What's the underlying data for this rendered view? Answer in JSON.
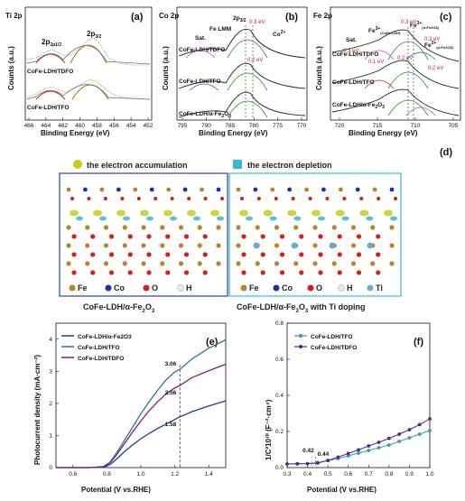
{
  "panel_a": {
    "tag": "(a)",
    "element": "Ti 2p",
    "ylabel": "Counts (a.u.)",
    "xlabel": "Binding Energy (eV)",
    "xticks": [
      "466",
      "464",
      "462",
      "460",
      "458",
      "456",
      "454",
      "452"
    ],
    "peaks": [
      "2p1/2",
      "2p3/2"
    ],
    "samples": [
      "CoFe-LDH/TDFO",
      "CoFe-LDH/TFO"
    ]
  },
  "panel_b": {
    "tag": "(b)",
    "element": "Co 2p",
    "ylabel": "Counts (a.u.)",
    "xlabel": "Binding Energy (eV)",
    "xticks": [
      "795",
      "790",
      "785",
      "780",
      "775",
      "770"
    ],
    "labels": [
      "2p3/2",
      "Fe LMM",
      "Sat.",
      "Co2+"
    ],
    "shifts": [
      "0.3 eV",
      "0.2 eV"
    ],
    "samples": [
      "CoFe-LDH/TDFO",
      "CoFe-LDH/TFO",
      "CoFe-LDH/α-Fe2O3"
    ]
  },
  "panel_c": {
    "tag": "(c)",
    "element": "Fe 2p",
    "ylabel": "Counts (a.u.)",
    "xlabel": "Binding Energy (eV)",
    "xticks": [
      "720",
      "715",
      "710",
      "705"
    ],
    "labels": [
      "Sat.",
      "Fe3+",
      "Fe2+",
      "Fe3+",
      "Fe2+"
    ],
    "subs": [
      "(CoFe-LDH)",
      "(α-Fe2O3)",
      "(α-Fe2O3)"
    ],
    "shifts": [
      "0.3 eV",
      "0.3 eV",
      "0.3 eV",
      "0.1 eV",
      "0.2 eV",
      "0.2 eV"
    ],
    "samples": [
      "CoFe-LDH/TDFO",
      "CoFe-LDH/TFO",
      "CoFe-LDH/α-Fe2O3"
    ]
  },
  "panel_d": {
    "tag": "(d)",
    "legend": [
      "the electron accumulation",
      "the electron depletion"
    ],
    "colors": {
      "accumulation": "#c8cc18",
      "depletion": "#38b8d8",
      "Fe": "#b8862a",
      "Co": "#2030a0",
      "O": "#d02020",
      "H": "#e8e8e8",
      "Ti": "#6aaad8"
    },
    "left_atoms": [
      "Fe",
      "Co",
      "O",
      "H"
    ],
    "right_atoms": [
      "Fe",
      "Co",
      "O",
      "H",
      "Ti"
    ],
    "captions": [
      "CoFe-LDH/α-Fe2O3",
      "CoFe-LDH/α-Fe2O3 with Ti doping"
    ]
  },
  "chart_data": [
    {
      "type": "line",
      "tag": "(e)",
      "xlabel": "Potential (V vs.RHE)",
      "ylabel": "Photocurrent density (mA·cm⁻²)",
      "xlim": [
        0.5,
        1.5
      ],
      "ylim": [
        0,
        4.5
      ],
      "xticks": [
        "0.6",
        "0.8",
        "1.0",
        "1.2",
        "1.4"
      ],
      "yticks": [
        "0",
        "1",
        "2",
        "3",
        "4"
      ],
      "legend_position": "top-left",
      "marker_x": 1.23,
      "series": [
        {
          "name": "CoFe-LDH/α-Fe2O3",
          "color": "#1f3a93",
          "x": [
            0.5,
            0.6,
            0.7,
            0.78,
            0.82,
            0.86,
            0.9,
            0.95,
            1.0,
            1.05,
            1.1,
            1.15,
            1.2,
            1.23,
            1.3,
            1.4,
            1.5
          ],
          "y": [
            0,
            0,
            0,
            0.02,
            0.1,
            0.28,
            0.48,
            0.7,
            0.9,
            1.07,
            1.22,
            1.36,
            1.5,
            1.58,
            1.74,
            1.92,
            2.08
          ]
        },
        {
          "name": "CoFe-LDH/TFO",
          "color": "#2a7a8a",
          "x": [
            0.5,
            0.6,
            0.7,
            0.78,
            0.82,
            0.86,
            0.9,
            0.95,
            1.0,
            1.05,
            1.1,
            1.15,
            1.2,
            1.23,
            1.3,
            1.4,
            1.5
          ],
          "y": [
            0,
            0,
            0,
            0.03,
            0.18,
            0.48,
            0.82,
            1.25,
            1.68,
            2.06,
            2.42,
            2.74,
            2.98,
            3.06,
            3.38,
            3.72,
            3.98
          ]
        },
        {
          "name": "CoFe-LDH/TDFO",
          "color": "#7a1e8a",
          "x": [
            0.5,
            0.6,
            0.7,
            0.78,
            0.82,
            0.86,
            0.9,
            0.95,
            1.0,
            1.05,
            1.1,
            1.15,
            1.2,
            1.23,
            1.3,
            1.4,
            1.5
          ],
          "y": [
            0,
            0,
            0,
            0.03,
            0.16,
            0.42,
            0.72,
            1.1,
            1.45,
            1.78,
            2.06,
            2.3,
            2.48,
            2.56,
            2.8,
            3.02,
            3.22
          ]
        }
      ],
      "annotations": [
        "3.06",
        "2.56",
        "1.58"
      ]
    },
    {
      "type": "scatter",
      "tag": "(f)",
      "xlabel": "Potential (V vs.RHE)",
      "ylabel": "1/C²10¹⁰ (F⁻²·cm⁴)",
      "xlim": [
        0.3,
        1.0
      ],
      "ylim": [
        0,
        0.8
      ],
      "xticks": [
        "0.3",
        "0.4",
        "0.5",
        "0.6",
        "0.7",
        "0.8",
        "0.9",
        "1.0"
      ],
      "yticks": [
        "0.0",
        "0.2",
        "0.4",
        "0.6",
        "0.8"
      ],
      "legend_position": "top-left",
      "series": [
        {
          "name": "CoFe-LDH/TFO",
          "color": "#3a9aa8",
          "x": [
            0.3,
            0.35,
            0.4,
            0.45,
            0.5,
            0.55,
            0.6,
            0.65,
            0.7,
            0.75,
            0.8,
            0.85,
            0.9,
            0.95,
            1.0
          ],
          "y": [
            0.02,
            0.021,
            0.022,
            0.028,
            0.038,
            0.05,
            0.065,
            0.08,
            0.095,
            0.11,
            0.125,
            0.145,
            0.165,
            0.185,
            0.205
          ]
        },
        {
          "name": "CoFe-LDH/TDFO",
          "color": "#4a2a8e",
          "x": [
            0.3,
            0.35,
            0.4,
            0.45,
            0.5,
            0.55,
            0.6,
            0.65,
            0.7,
            0.75,
            0.8,
            0.85,
            0.9,
            0.95,
            1.0
          ],
          "y": [
            0.02,
            0.021,
            0.022,
            0.025,
            0.04,
            0.058,
            0.078,
            0.098,
            0.12,
            0.14,
            0.162,
            0.185,
            0.21,
            0.238,
            0.27
          ]
        }
      ],
      "annotations": [
        {
          "text": "0.42",
          "color": "#3a9aa8"
        },
        {
          "text": "0.44",
          "color": "#4a2a8e"
        }
      ]
    }
  ]
}
